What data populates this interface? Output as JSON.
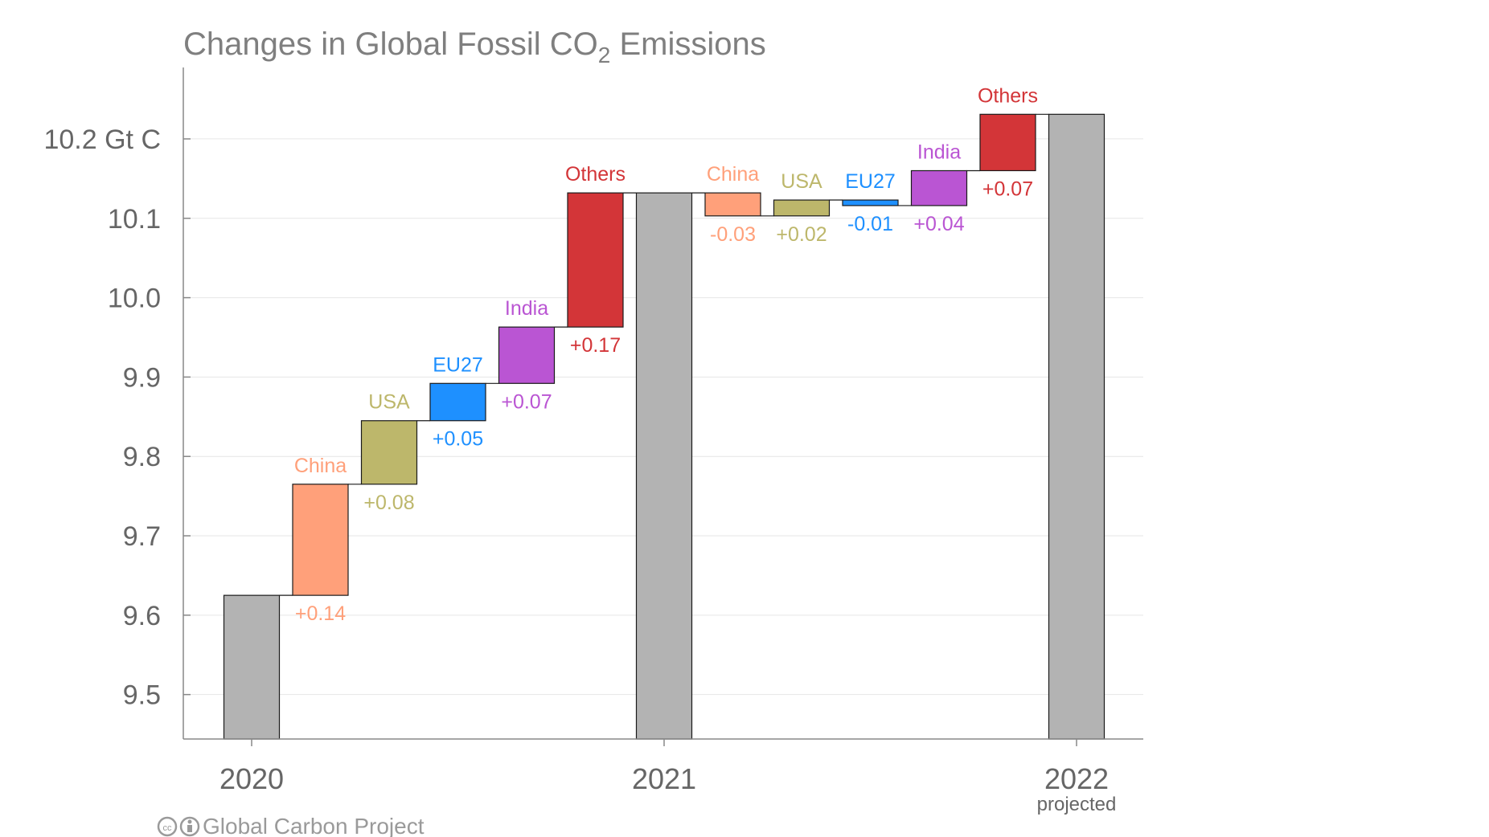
{
  "chart_data": {
    "type": "bar",
    "subtype": "waterfall",
    "title": "Changes in Global Fossil CO",
    "title_subscript": "2",
    "title_suffix": " Emissions",
    "y_tick_labels": [
      "9.5",
      "9.6",
      "9.7",
      "9.8",
      "9.9",
      "10.0",
      "10.1",
      "10.2 Gt C"
    ],
    "y_ticks": [
      9.5,
      9.6,
      9.7,
      9.8,
      9.9,
      10.0,
      10.1,
      10.2
    ],
    "ylim": [
      9.444,
      10.29
    ],
    "grid": true,
    "x_labels": [
      {
        "label": "2020",
        "sub": ""
      },
      {
        "label": "2021",
        "sub": ""
      },
      {
        "label": "2022",
        "sub": "projected"
      }
    ],
    "colors": {
      "total": "#b3b3b3",
      "China": "#ffa07a",
      "USA": "#bdb76b",
      "EU27": "#1e90ff",
      "India": "#ba55d3",
      "Others": "#d33538"
    },
    "bars": [
      {
        "kind": "total",
        "label": "2020",
        "value": 9.625
      },
      {
        "kind": "change",
        "name": "China",
        "value_label": "+0.14",
        "start": 9.625,
        "end": 9.765
      },
      {
        "kind": "change",
        "name": "USA",
        "value_label": "+0.08",
        "start": 9.765,
        "end": 9.845
      },
      {
        "kind": "change",
        "name": "EU27",
        "value_label": "+0.05",
        "start": 9.845,
        "end": 9.892
      },
      {
        "kind": "change",
        "name": "India",
        "value_label": "+0.07",
        "start": 9.892,
        "end": 9.963
      },
      {
        "kind": "change",
        "name": "Others",
        "value_label": "+0.17",
        "start": 9.963,
        "end": 10.132
      },
      {
        "kind": "total",
        "label": "2021",
        "value": 10.132
      },
      {
        "kind": "change",
        "name": "China",
        "value_label": "-0.03",
        "start": 10.132,
        "end": 10.103
      },
      {
        "kind": "change",
        "name": "USA",
        "value_label": "+0.02",
        "start": 10.103,
        "end": 10.123
      },
      {
        "kind": "change",
        "name": "EU27",
        "value_label": "-0.01",
        "start": 10.123,
        "end": 10.116
      },
      {
        "kind": "change",
        "name": "India",
        "value_label": "+0.04",
        "start": 10.116,
        "end": 10.16
      },
      {
        "kind": "change",
        "name": "Others",
        "value_label": "+0.07",
        "start": 10.16,
        "end": 10.231
      },
      {
        "kind": "total",
        "label": "2022",
        "value": 10.231
      }
    ]
  },
  "credit": {
    "cc_icon": "creative-commons-icon",
    "by_icon": "attribution-icon",
    "text": "Global Carbon Project"
  }
}
